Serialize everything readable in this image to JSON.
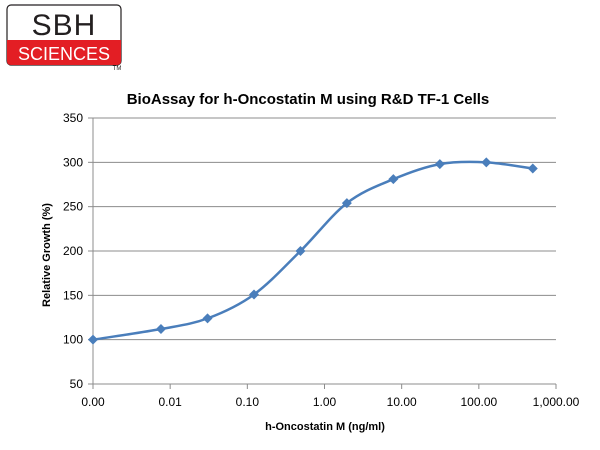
{
  "logo": {
    "top_text": "SBH",
    "bottom_text": "SCIENCES",
    "trademark": "TM",
    "colors": {
      "red": "#e31e24",
      "dark": "#231f20"
    }
  },
  "chart_data": {
    "type": "line",
    "title": "BioAssay for h-Oncostatin M using R&D TF-1 Cells",
    "xlabel": "h-Oncostatin M (ng/ml)",
    "ylabel": "Relative Growth (%)",
    "x_scale": "log",
    "xlim": [
      0.001,
      1000
    ],
    "ylim": [
      50,
      350
    ],
    "x_ticks": [
      0.001,
      0.01,
      0.1,
      1,
      10,
      100,
      1000
    ],
    "x_tick_labels": [
      "0.00",
      "0.01",
      "0.10",
      "1.00",
      "10.00",
      "100.00",
      "1,000.00"
    ],
    "y_ticks": [
      50,
      100,
      150,
      200,
      250,
      300,
      350
    ],
    "y_tick_labels": [
      "50",
      "100",
      "150",
      "200",
      "250",
      "300",
      "350"
    ],
    "grid": "horizontal",
    "series": [
      {
        "color": "#4a7ebb",
        "marker": "diamond",
        "smooth": true,
        "x": [
          0.001,
          0.0076,
          0.0305,
          0.122,
          0.488,
          1.95,
          7.8,
          31.25,
          125,
          500
        ],
        "y": [
          100,
          112,
          124,
          151,
          200,
          254,
          281,
          298,
          300,
          293
        ]
      }
    ]
  }
}
